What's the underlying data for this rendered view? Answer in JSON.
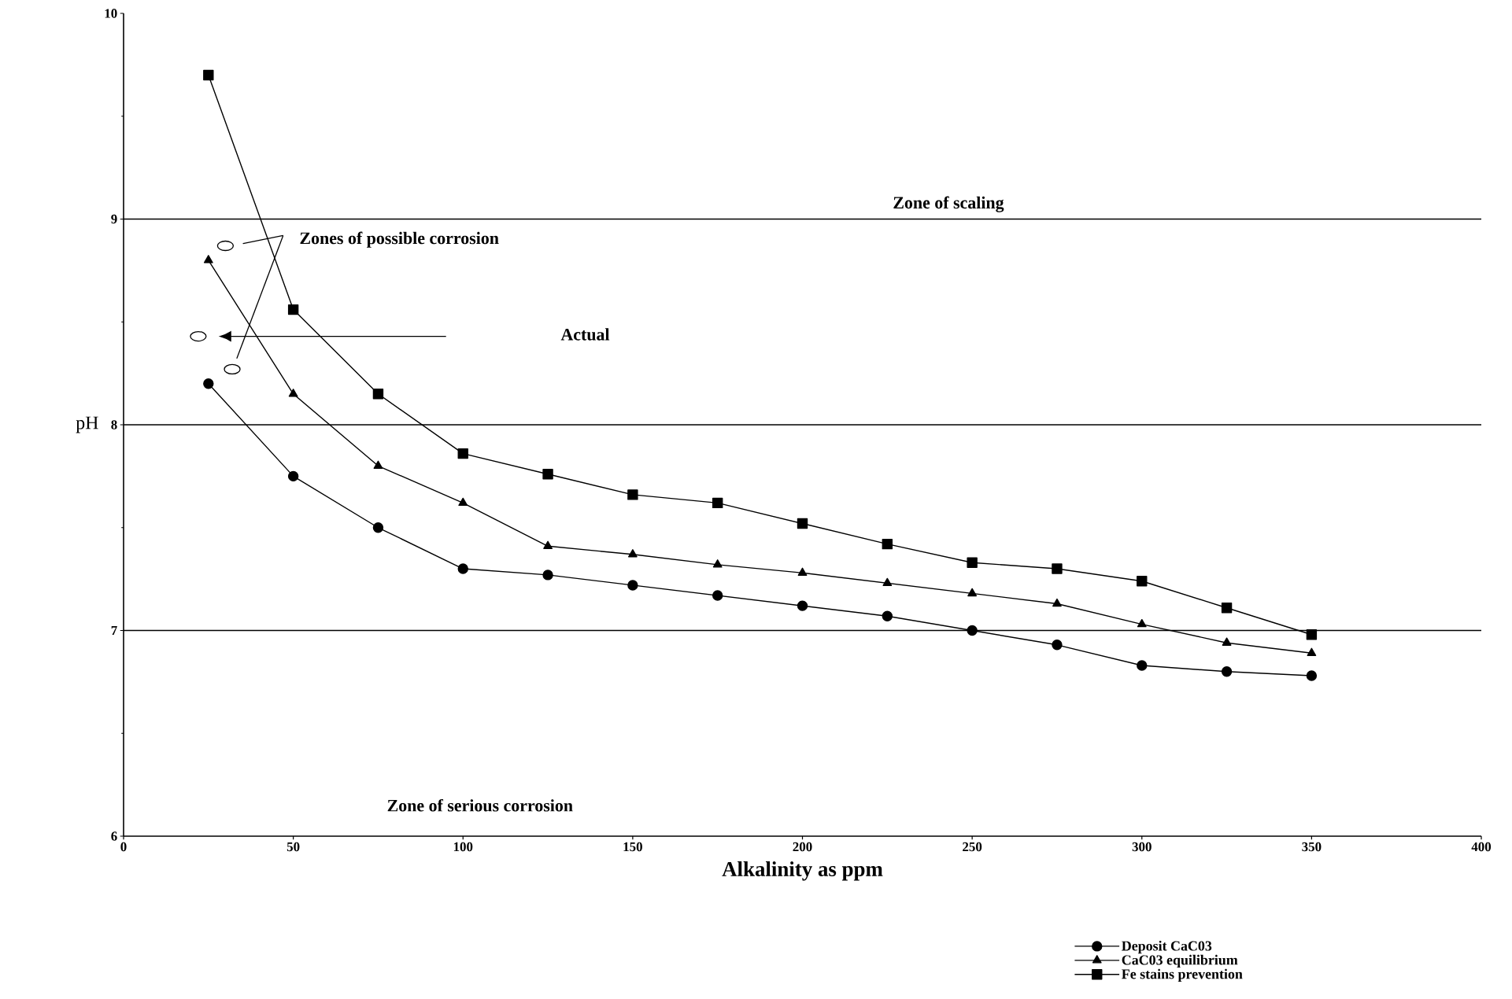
{
  "chart_data": {
    "type": "line",
    "xlabel": "Alkalinity as ppm",
    "ylabel": "pH",
    "x": [
      25,
      50,
      75,
      100,
      125,
      150,
      175,
      200,
      225,
      250,
      275,
      300,
      325,
      350
    ],
    "series": [
      {
        "name": "Deposit CaC03",
        "color": "#000000",
        "marker": "circle",
        "values": [
          8.2,
          7.75,
          7.5,
          7.3,
          7.27,
          7.22,
          7.17,
          7.12,
          7.07,
          7.0,
          6.93,
          6.83,
          6.8,
          6.78
        ]
      },
      {
        "name": "CaC03 equilibrium",
        "color": "#000000",
        "marker": "triangle",
        "values": [
          8.8,
          8.15,
          7.8,
          7.62,
          7.41,
          7.37,
          7.32,
          7.28,
          7.23,
          7.18,
          7.13,
          7.03,
          6.94,
          6.89
        ]
      },
      {
        "name": "Fe stains prevention",
        "color": "#000000",
        "marker": "square",
        "values": [
          9.7,
          8.56,
          8.15,
          7.86,
          7.76,
          7.66,
          7.62,
          7.52,
          7.42,
          7.33,
          7.3,
          7.24,
          7.11,
          6.98
        ]
      }
    ],
    "ref_lines": [
      {
        "axis": "y",
        "value": 9,
        "color": "#000000"
      },
      {
        "axis": "y",
        "value": 8,
        "color": "#000000"
      },
      {
        "axis": "y",
        "value": 7,
        "color": "#000000"
      }
    ],
    "annotations": [
      "Zone of scaling",
      "Zones of possible corrosion",
      "Actual",
      "Zone of serious corrosion"
    ],
    "xlim": [
      0,
      400
    ],
    "xticks": [
      0,
      50,
      100,
      150,
      200,
      250,
      300,
      350,
      400
    ],
    "ylim": [
      6,
      10
    ],
    "yticks": [
      6,
      7,
      8,
      9,
      10
    ],
    "grid": false,
    "legend": "bottom right",
    "line_style": "solid"
  }
}
